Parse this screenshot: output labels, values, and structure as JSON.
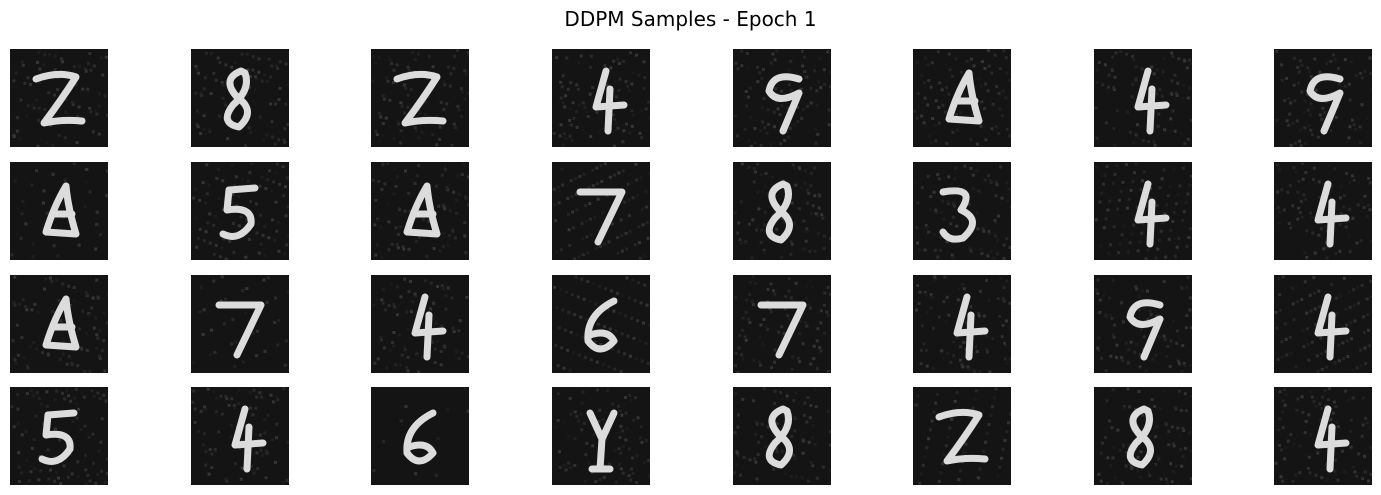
{
  "figure": {
    "title": "DDPM Samples - Epoch 1"
  },
  "samples": {
    "rows": 4,
    "cols": 8,
    "background_color": "#141414",
    "stroke_color": "#dcdcdc",
    "items": [
      {
        "name": "sample-r1-c1",
        "glyph": "2"
      },
      {
        "name": "sample-r1-c2",
        "glyph": "8"
      },
      {
        "name": "sample-r1-c3",
        "glyph": "2"
      },
      {
        "name": "sample-r1-c4",
        "glyph": "4"
      },
      {
        "name": "sample-r1-c5",
        "glyph": "9"
      },
      {
        "name": "sample-r1-c6",
        "glyph": "a"
      },
      {
        "name": "sample-r1-c7",
        "glyph": "4"
      },
      {
        "name": "sample-r1-c8",
        "glyph": "9"
      },
      {
        "name": "sample-r2-c1",
        "glyph": "a"
      },
      {
        "name": "sample-r2-c2",
        "glyph": "5"
      },
      {
        "name": "sample-r2-c3",
        "glyph": "a"
      },
      {
        "name": "sample-r2-c4",
        "glyph": "7"
      },
      {
        "name": "sample-r2-c5",
        "glyph": "8"
      },
      {
        "name": "sample-r2-c6",
        "glyph": "3"
      },
      {
        "name": "sample-r2-c7",
        "glyph": "4"
      },
      {
        "name": "sample-r2-c8",
        "glyph": "4"
      },
      {
        "name": "sample-r3-c1",
        "glyph": "a"
      },
      {
        "name": "sample-r3-c2",
        "glyph": "7"
      },
      {
        "name": "sample-r3-c3",
        "glyph": "4"
      },
      {
        "name": "sample-r3-c4",
        "glyph": "6"
      },
      {
        "name": "sample-r3-c5",
        "glyph": "7"
      },
      {
        "name": "sample-r3-c6",
        "glyph": "4"
      },
      {
        "name": "sample-r3-c7",
        "glyph": "9"
      },
      {
        "name": "sample-r3-c8",
        "glyph": "4"
      },
      {
        "name": "sample-r4-c1",
        "glyph": "5"
      },
      {
        "name": "sample-r4-c2",
        "glyph": "4"
      },
      {
        "name": "sample-r4-c3",
        "glyph": "6"
      },
      {
        "name": "sample-r4-c4",
        "glyph": "y"
      },
      {
        "name": "sample-r4-c5",
        "glyph": "8"
      },
      {
        "name": "sample-r4-c6",
        "glyph": "2"
      },
      {
        "name": "sample-r4-c7",
        "glyph": "8"
      },
      {
        "name": "sample-r4-c8",
        "glyph": "4"
      }
    ]
  }
}
